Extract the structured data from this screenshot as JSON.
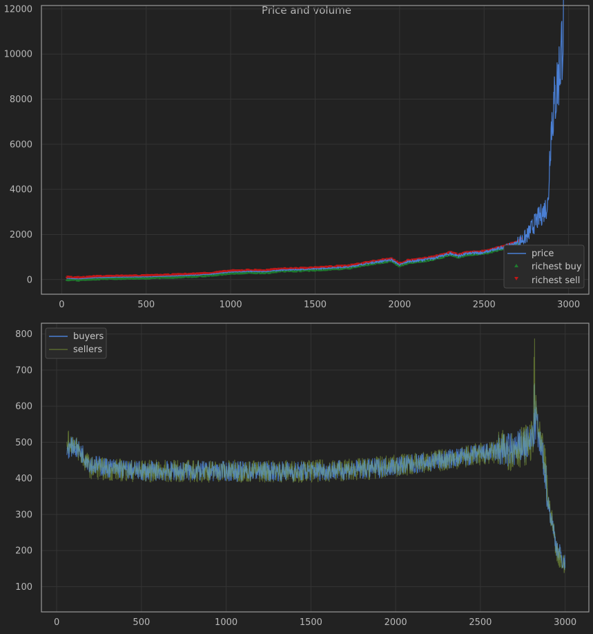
{
  "figure": {
    "title": "Price and volume"
  },
  "chart_data": [
    {
      "type": "line",
      "title": "Price and volume",
      "xlim": [
        -120,
        3120
      ],
      "ylim": [
        -650,
        12150
      ],
      "xticks": [
        0,
        500,
        1000,
        1500,
        2000,
        2500,
        3000
      ],
      "yticks": [
        0,
        2000,
        4000,
        6000,
        8000,
        10000,
        12000
      ],
      "grid": true,
      "legend_position": "lower-right",
      "series": [
        {
          "name": "price",
          "kind": "line",
          "color": "#4a7fd4",
          "x": [
            30,
            100,
            200,
            300,
            400,
            500,
            600,
            700,
            800,
            900,
            1000,
            1100,
            1200,
            1300,
            1400,
            1500,
            1600,
            1700,
            1800,
            1900,
            1950,
            2000,
            2050,
            2100,
            2200,
            2300,
            2350,
            2400,
            2500,
            2600,
            2700,
            2750,
            2800,
            2850,
            2880,
            2890,
            2900,
            2950,
            2970
          ],
          "y": [
            50,
            30,
            80,
            100,
            110,
            120,
            140,
            170,
            200,
            250,
            330,
            360,
            350,
            420,
            440,
            470,
            520,
            560,
            700,
            820,
            880,
            650,
            800,
            830,
            950,
            1150,
            1050,
            1150,
            1200,
            1400,
            1650,
            1900,
            2500,
            3000,
            3400,
            5900,
            7000,
            9500,
            11400
          ]
        },
        {
          "name": "richest buy",
          "kind": "scatter",
          "color": "#1e7a2e"
        },
        {
          "name": "richest sell",
          "kind": "scatter",
          "color": "#c01818"
        }
      ]
    },
    {
      "type": "line",
      "xlim": [
        -90,
        3140
      ],
      "ylim": [
        30,
        830
      ],
      "xticks": [
        0,
        500,
        1000,
        1500,
        2000,
        2500,
        3000
      ],
      "yticks": [
        100,
        200,
        300,
        400,
        500,
        600,
        700,
        800
      ],
      "grid": true,
      "legend_position": "upper-left",
      "series": [
        {
          "name": "buyers",
          "color": "#4a7fd4",
          "x": [
            60,
            100,
            150,
            200,
            300,
            500,
            800,
            1000,
            1500,
            1800,
            2000,
            2200,
            2400,
            2600,
            2700,
            2800,
            2830,
            2850,
            2880,
            2900,
            2930,
            2950,
            3000
          ],
          "y": [
            480,
            490,
            470,
            440,
            430,
            420,
            420,
            420,
            420,
            425,
            435,
            445,
            460,
            475,
            480,
            500,
            560,
            490,
            430,
            330,
            260,
            210,
            160
          ]
        },
        {
          "name": "sellers",
          "color": "#5a6b30",
          "x": [
            60,
            100,
            150,
            200,
            300,
            500,
            800,
            1000,
            1500,
            1800,
            2000,
            2200,
            2400,
            2600,
            2700,
            2800,
            2830,
            2850,
            2880,
            2900,
            2930,
            2950,
            3000
          ],
          "y": [
            500,
            500,
            460,
            430,
            425,
            420,
            420,
            420,
            420,
            425,
            435,
            445,
            460,
            475,
            480,
            500,
            580,
            500,
            440,
            340,
            260,
            200,
            150
          ]
        }
      ]
    }
  ]
}
